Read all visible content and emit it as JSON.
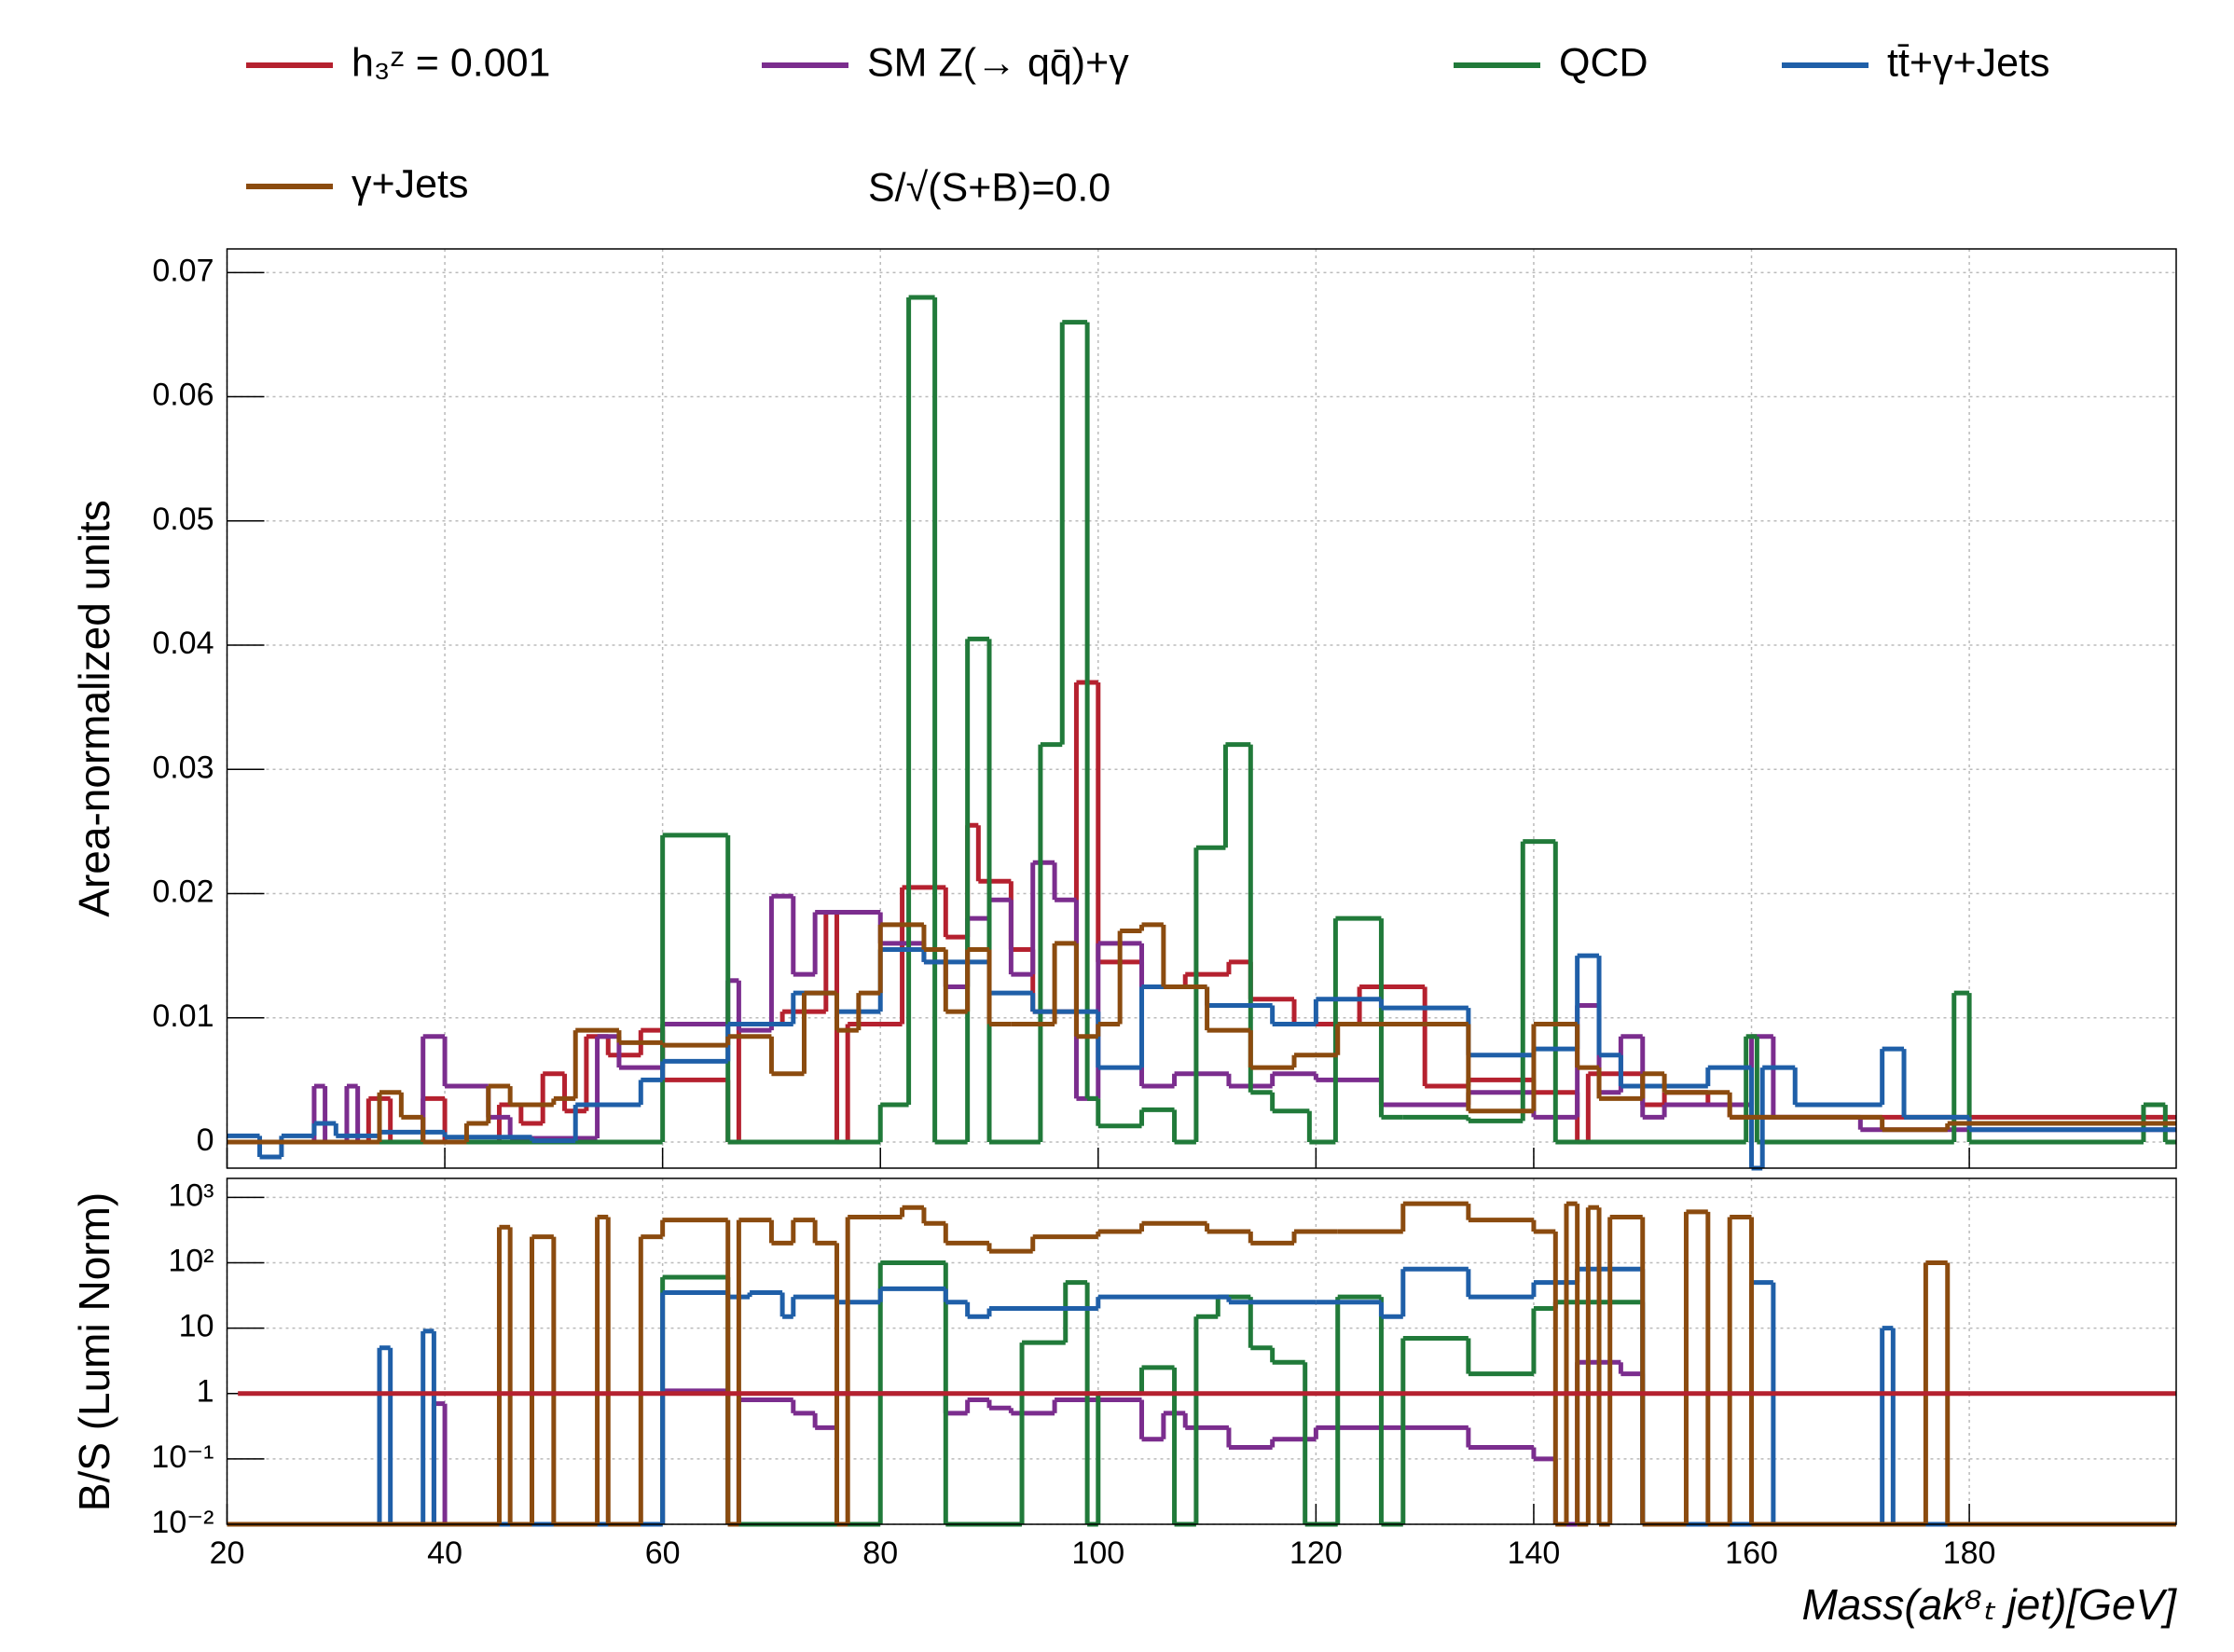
{
  "chart_data": [
    {
      "type": "histogram",
      "ylabel": "Area-normalized units",
      "annotation": "S/√(S+B)=0.0",
      "xlim": [
        20,
        199
      ],
      "ylim": [
        -0.0021,
        0.0719
      ],
      "yticks": [
        0,
        0.01,
        0.02,
        0.03,
        0.04,
        0.05,
        0.06,
        0.07
      ],
      "grid": true,
      "log": false,
      "series": [
        {
          "name": "h₃ᶻ = 0.001",
          "color": "#b5212f",
          "bins": [
            20,
            33,
            35,
            38,
            40,
            45,
            47,
            49,
            51,
            53,
            55,
            58,
            60,
            66,
            67,
            71,
            75,
            76,
            77,
            82,
            86,
            88,
            89,
            92,
            94,
            98,
            100,
            104,
            108,
            112,
            114,
            118,
            124,
            130,
            134,
            140,
            144,
            145,
            150,
            152,
            156,
            158,
            199
          ],
          "values": [
            0,
            0.0035,
            0,
            0.0035,
            0,
            0.003,
            0.0015,
            0.0055,
            0.0025,
            0.0085,
            0.007,
            0.009,
            0.005,
            0,
            0.0095,
            0.0105,
            0.0185,
            0,
            0.0095,
            0.0205,
            0.0165,
            0.0255,
            0.021,
            0.0155,
            0.0105,
            0.037,
            0.0145,
            0.0125,
            0.0135,
            0.0145,
            0.0115,
            0.0095,
            0.0125,
            0.0045,
            0.005,
            0.004,
            0,
            0.0055,
            0.003,
            0.004,
            0.003,
            0.002
          ]
        },
        {
          "name": "SM Z(→ qq̄)+γ",
          "color": "#7b2d8e",
          "bins": [
            20,
            28,
            29,
            31,
            32,
            38,
            40,
            44,
            46,
            54,
            56,
            60,
            66,
            67,
            70,
            72,
            74,
            80,
            84,
            86,
            88,
            90,
            92,
            94,
            96,
            98,
            100,
            104,
            107,
            112,
            116,
            120,
            126,
            134,
            140,
            144,
            146,
            148,
            150,
            152,
            160,
            162,
            170,
            199
          ],
          "values": [
            0,
            0.0045,
            0,
            0.0045,
            0,
            0.0085,
            0.0045,
            0.002,
            0.0003,
            0.0085,
            0.006,
            0.0095,
            0.013,
            0.009,
            0.0198,
            0.0135,
            0.0185,
            0.016,
            0.0145,
            0.0125,
            0.018,
            0.0195,
            0.0135,
            0.0225,
            0.0195,
            0.0035,
            0.016,
            0.0045,
            0.0055,
            0.0045,
            0.0055,
            0.005,
            0.003,
            0.004,
            0.002,
            0.011,
            0.004,
            0.0085,
            0.002,
            0.003,
            0.0085,
            0.002,
            0.001
          ]
        },
        {
          "name": "QCD",
          "color": "#217a3a",
          "bins": [
            20,
            60,
            66,
            80,
            82.6,
            85,
            88,
            90,
            94.7,
            96.7,
            99,
            100,
            104,
            107,
            109,
            111.7,
            114,
            116,
            119.4,
            121.8,
            126,
            128,
            134,
            139,
            142,
            159.5,
            160.5,
            178.6,
            180,
            196,
            198,
            199
          ],
          "values": [
            0,
            0.0247,
            0,
            0.003,
            0.068,
            0,
            0.0405,
            0,
            0.032,
            0.066,
            0.0035,
            0.0013,
            0.0026,
            0,
            0.0237,
            0.032,
            0.004,
            0.0025,
            0,
            0.018,
            0.002,
            0.002,
            0.0017,
            0.0242,
            0,
            0.0085,
            0,
            0.012,
            0,
            0.003,
            0
          ]
        },
        {
          "name": "tt̄+γ+Jets",
          "color": "#1f5fa8",
          "bins": [
            20,
            23,
            25,
            28,
            30,
            34,
            40,
            48,
            52,
            58,
            60,
            66,
            72,
            76,
            80,
            84,
            90,
            94,
            100,
            104,
            110,
            116,
            120,
            126,
            134,
            140,
            144,
            146,
            148,
            156,
            160,
            161,
            164,
            172,
            174,
            180,
            199
          ],
          "values": [
            0.0005,
            -0.0012,
            0.0005,
            0.0015,
            0.0005,
            0.0008,
            0.0004,
            0.0001,
            0.003,
            0.005,
            0.0065,
            0.0095,
            0.012,
            0.0105,
            0.0155,
            0.0145,
            0.012,
            0.0105,
            0.006,
            0.0125,
            0.011,
            0.0095,
            0.0115,
            0.0108,
            0.007,
            0.0075,
            0.015,
            0.007,
            0.0045,
            0.006,
            -0.0025,
            0.006,
            0.003,
            0.0075,
            0.002,
            0.001
          ]
        },
        {
          "name": "γ+Jets",
          "color": "#8b4b0f",
          "bins": [
            20,
            34,
            36,
            38,
            42,
            44,
            46,
            50,
            52,
            56,
            60,
            66,
            70,
            73,
            76,
            78,
            80,
            84,
            86,
            88,
            90,
            92,
            96,
            98,
            100,
            102,
            104,
            106,
            110,
            114,
            118,
            122,
            126,
            134,
            140,
            144,
            146,
            150,
            152,
            158,
            160,
            172,
            178,
            199
          ],
          "values": [
            0,
            0.004,
            0.002,
            0,
            0.0015,
            0.0045,
            0.003,
            0.0035,
            0.009,
            0.008,
            0.0078,
            0.0085,
            0.0055,
            0.012,
            0.009,
            0.012,
            0.0175,
            0.0155,
            0.0105,
            0.0155,
            0.0095,
            0.0095,
            0.016,
            0.0085,
            0.0095,
            0.017,
            0.0175,
            0.0125,
            0.009,
            0.006,
            0.007,
            0.0095,
            0.0095,
            0.0025,
            0.0095,
            0.006,
            0.0035,
            0.0055,
            0.004,
            0.002,
            0.002,
            0.001,
            0.0015
          ]
        }
      ]
    },
    {
      "type": "histogram",
      "xlabel": "Mass(ak⁸ₜ   jet)[GeV]",
      "ylabel": "B/S (Lumi Norm)",
      "xlim": [
        20,
        199
      ],
      "xticks": [
        20,
        40,
        60,
        80,
        100,
        120,
        140,
        160,
        180
      ],
      "ylim": [
        0.01,
        1950
      ],
      "log": true,
      "grid": true,
      "yticks": [
        {
          "value": 0.01,
          "label": "10⁻²"
        },
        {
          "value": 0.1,
          "label": "10⁻¹"
        },
        1,
        10,
        {
          "value": 100,
          "label": "10²"
        },
        {
          "value": 1000,
          "label": "10³"
        }
      ],
      "series": [
        {
          "color": "#7b2d8e",
          "bins": [
            20,
            39,
            40,
            60,
            66,
            67,
            72,
            74,
            76,
            80,
            86,
            88,
            90,
            92,
            96,
            100,
            104,
            106,
            108,
            112,
            116,
            120,
            126,
            134,
            140,
            142,
            144,
            148,
            150,
            199
          ],
          "values": [
            0.01,
            0.7,
            0.01,
            1.1,
            0.01,
            0.8,
            0.5,
            0.3,
            1,
            1,
            0.5,
            0.8,
            0.6,
            0.5,
            0.8,
            0.8,
            0.2,
            0.5,
            0.3,
            0.15,
            0.2,
            0.3,
            0.3,
            0.15,
            0.1,
            0.01,
            3,
            2,
            0.01
          ]
        },
        {
          "color": "#217a3a",
          "bins": [
            20,
            60,
            66,
            80,
            86,
            93,
            97,
            99,
            100,
            104,
            107,
            109,
            111,
            114,
            116,
            119,
            122,
            126,
            128,
            134,
            140,
            142,
            150,
            199
          ],
          "values": [
            0.01,
            60,
            0.01,
            100,
            0.01,
            6,
            50,
            0.01,
            1,
            2.5,
            0.01,
            15,
            30,
            5,
            3,
            0.01,
            30,
            0.01,
            7,
            2,
            20,
            25,
            0.01
          ]
        },
        {
          "color": "#1f5fa8",
          "bins": [
            20,
            34,
            35,
            38,
            39,
            60,
            66,
            68,
            71,
            72,
            76,
            80,
            86,
            88,
            90,
            100,
            112,
            120,
            126,
            128,
            134,
            140,
            144,
            150,
            160,
            162,
            172,
            173,
            199
          ],
          "values": [
            0.01,
            5,
            0.01,
            9,
            0.01,
            35,
            30,
            35,
            15,
            30,
            25,
            40,
            25,
            15,
            20,
            30,
            25,
            25,
            15,
            80,
            30,
            50,
            80,
            0.01,
            50,
            0.01,
            10,
            0.01
          ]
        },
        {
          "color": "#8b4b0f",
          "bins": [
            20,
            45,
            46,
            48,
            50,
            54,
            55,
            58,
            60,
            66,
            67,
            70,
            72,
            74,
            76,
            77,
            82,
            84,
            86,
            90,
            94,
            100,
            104,
            110,
            114,
            118,
            122,
            128,
            134,
            140,
            142,
            143,
            144,
            145,
            146,
            147,
            150,
            154,
            156,
            158,
            160,
            176,
            178,
            199
          ],
          "values": [
            0.01,
            350,
            0.01,
            250,
            0.01,
            500,
            0.01,
            250,
            450,
            0.01,
            450,
            200,
            450,
            200,
            0.01,
            500,
            700,
            400,
            200,
            150,
            250,
            300,
            400,
            300,
            200,
            300,
            300,
            800,
            450,
            300,
            0.01,
            800,
            0.01,
            700,
            0.01,
            500,
            0.01,
            600,
            0.01,
            500,
            0.01,
            100,
            0.01
          ]
        },
        {
          "color": "#b5212f",
          "bins": [
            21,
            199
          ],
          "values": [
            1
          ]
        }
      ]
    }
  ]
}
